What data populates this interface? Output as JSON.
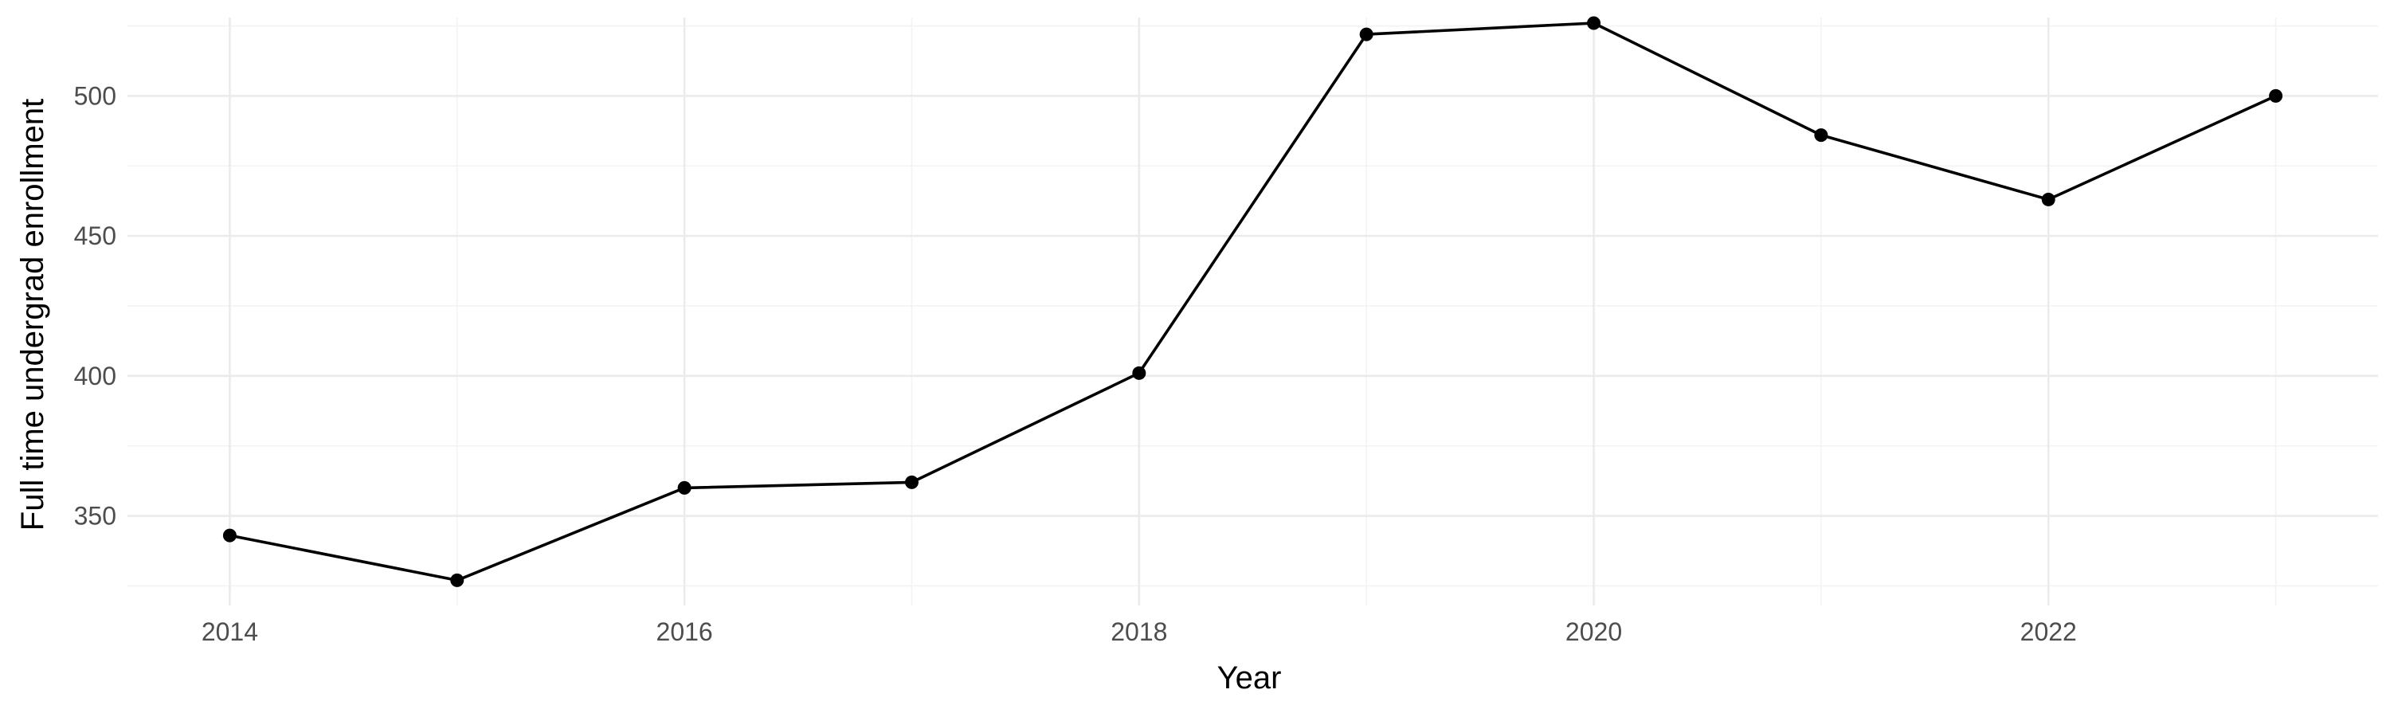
{
  "chart_data": {
    "type": "line",
    "title": "",
    "xlabel": "Year",
    "ylabel": "Full time undergrad enrollment",
    "xlim": [
      2013.55,
      2023.45
    ],
    "ylim": [
      318,
      528
    ],
    "x_major_ticks": [
      2014,
      2016,
      2018,
      2020,
      2022
    ],
    "x_minor_ticks": [
      2015,
      2017,
      2019,
      2021,
      2023
    ],
    "y_major_ticks": [
      350,
      400,
      450,
      500
    ],
    "y_minor_ticks": [
      325,
      375,
      425,
      475,
      525
    ],
    "x_tick_labels": [
      "2014",
      "2016",
      "2018",
      "2020",
      "2022"
    ],
    "y_tick_labels": [
      "350",
      "400",
      "450",
      "500"
    ],
    "grid": true,
    "legend": "none",
    "series": [
      {
        "color": "#000000",
        "x": [
          2014,
          2015,
          2016,
          2017,
          2018,
          2019,
          2020,
          2021,
          2022,
          2023
        ],
        "y": [
          343,
          327,
          360,
          362,
          401,
          522,
          526,
          486,
          463,
          500
        ]
      }
    ]
  }
}
